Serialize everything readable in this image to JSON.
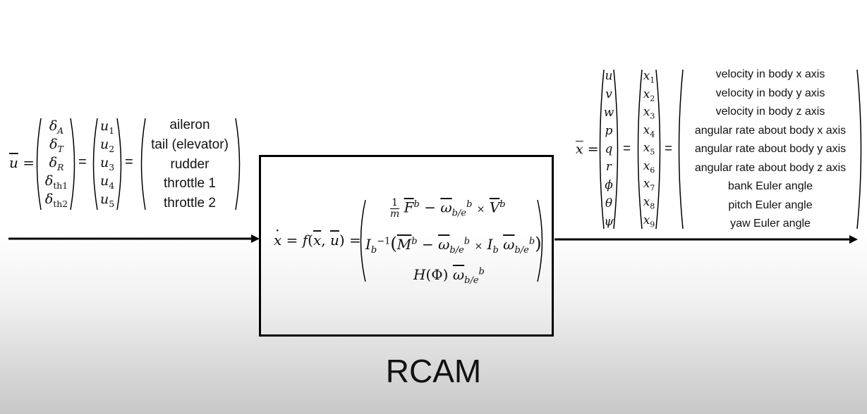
{
  "u_vector": {
    "lhs": "u",
    "symbols": [
      "δA",
      "δT",
      "δR",
      "δth1",
      "δth2"
    ],
    "components": [
      "u1",
      "u2",
      "u3",
      "u4",
      "u5"
    ],
    "descriptions": [
      "aileron",
      "tail (elevator)",
      "rudder",
      "throttle 1",
      "throttle 2"
    ]
  },
  "x_vector": {
    "lhs": "x",
    "symbols": [
      "u",
      "v",
      "w",
      "p",
      "q",
      "r",
      "ϕ",
      "θ",
      "ψ"
    ],
    "components": [
      "x1",
      "x2",
      "x3",
      "x4",
      "x5",
      "x6",
      "x7",
      "x8",
      "x9"
    ],
    "descriptions": [
      "velocity in body x axis",
      "velocity in body y axis",
      "velocity in body z axis",
      "angular rate about body x axis",
      "angular rate about body y axis",
      "angular rate about body z axis",
      "bank Euler angle",
      "pitch Euler angle",
      "yaw Euler angle"
    ]
  },
  "equation": {
    "lhs": "ẋ = f(x, u) =",
    "row1": "1/m F^b − ω_b/e^b × V^b",
    "row2": "I_b^−1 (M^b − ω_b/e^b × I_b ω_b/e^b)",
    "row3": "H(Φ) ω_b/e^b"
  },
  "block_label": "RCAM"
}
